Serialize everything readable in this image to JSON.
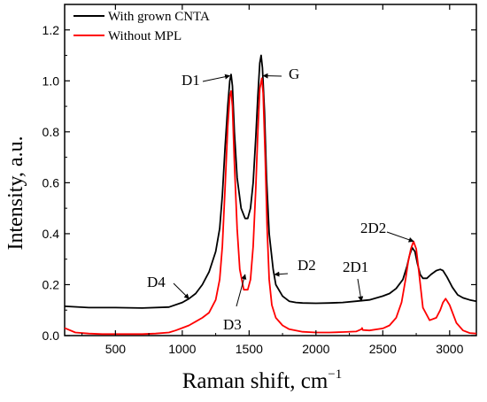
{
  "chart_data": {
    "type": "line",
    "xlabel": "Raman shift, cm",
    "xlabel_sup": "−1",
    "ylabel": "Intensity, a.u.",
    "xlim": [
      120,
      3200
    ],
    "ylim": [
      0.0,
      1.3
    ],
    "x_ticks": [
      500,
      1000,
      1500,
      2000,
      2500,
      3000
    ],
    "y_ticks": [
      0.0,
      0.2,
      0.4,
      0.6,
      0.8,
      1.0,
      1.2
    ],
    "y_tick_labels": [
      "0.0",
      "0.2",
      "0.4",
      "0.6",
      "0.8",
      "1.0",
      "1.2"
    ],
    "grid": false,
    "legend_position": "top-left",
    "series": [
      {
        "name": "With grown CNTA",
        "color": "#000000",
        "x": [
          120,
          300,
          500,
          700,
          900,
          1000,
          1050,
          1100,
          1150,
          1200,
          1250,
          1280,
          1300,
          1320,
          1340,
          1355,
          1365,
          1375,
          1390,
          1410,
          1440,
          1470,
          1490,
          1510,
          1530,
          1550,
          1565,
          1580,
          1590,
          1600,
          1615,
          1630,
          1650,
          1680,
          1700,
          1750,
          1800,
          1850,
          1900,
          2000,
          2100,
          2200,
          2300,
          2400,
          2500,
          2550,
          2600,
          2650,
          2680,
          2700,
          2720,
          2740,
          2760,
          2780,
          2800,
          2830,
          2860,
          2900,
          2930,
          2950,
          2980,
          3020,
          3060,
          3100,
          3150,
          3200
        ],
        "values": [
          0.115,
          0.11,
          0.11,
          0.108,
          0.112,
          0.13,
          0.145,
          0.165,
          0.2,
          0.25,
          0.33,
          0.42,
          0.55,
          0.74,
          0.9,
          1.0,
          1.025,
          0.98,
          0.8,
          0.62,
          0.5,
          0.46,
          0.46,
          0.5,
          0.6,
          0.78,
          0.94,
          1.07,
          1.1,
          1.05,
          0.88,
          0.62,
          0.4,
          0.26,
          0.2,
          0.155,
          0.135,
          0.13,
          0.128,
          0.127,
          0.128,
          0.13,
          0.135,
          0.14,
          0.155,
          0.165,
          0.185,
          0.22,
          0.27,
          0.315,
          0.345,
          0.33,
          0.28,
          0.24,
          0.225,
          0.225,
          0.24,
          0.255,
          0.26,
          0.255,
          0.23,
          0.19,
          0.16,
          0.148,
          0.14,
          0.135
        ]
      },
      {
        "name": "Without MPL",
        "color": "#ff0000",
        "x": [
          120,
          200,
          300,
          400,
          500,
          600,
          700,
          800,
          900,
          950,
          1000,
          1050,
          1100,
          1150,
          1200,
          1250,
          1280,
          1300,
          1320,
          1340,
          1355,
          1365,
          1375,
          1390,
          1410,
          1430,
          1460,
          1490,
          1510,
          1530,
          1550,
          1565,
          1580,
          1595,
          1605,
          1620,
          1635,
          1650,
          1670,
          1700,
          1750,
          1800,
          1900,
          2000,
          2100,
          2200,
          2300,
          2340,
          2345,
          2350,
          2400,
          2500,
          2550,
          2600,
          2640,
          2670,
          2690,
          2710,
          2730,
          2750,
          2770,
          2800,
          2850,
          2900,
          2930,
          2950,
          2970,
          3000,
          3050,
          3100,
          3150,
          3200
        ],
        "values": [
          0.03,
          0.012,
          0.008,
          0.006,
          0.006,
          0.006,
          0.006,
          0.008,
          0.012,
          0.02,
          0.03,
          0.04,
          0.055,
          0.07,
          0.09,
          0.14,
          0.22,
          0.35,
          0.58,
          0.82,
          0.94,
          0.96,
          0.9,
          0.68,
          0.42,
          0.26,
          0.18,
          0.18,
          0.22,
          0.35,
          0.58,
          0.8,
          0.97,
          1.01,
          0.95,
          0.7,
          0.42,
          0.22,
          0.12,
          0.07,
          0.04,
          0.025,
          0.015,
          0.012,
          0.012,
          0.014,
          0.016,
          0.025,
          0.03,
          0.022,
          0.02,
          0.028,
          0.04,
          0.07,
          0.13,
          0.22,
          0.29,
          0.34,
          0.37,
          0.34,
          0.25,
          0.11,
          0.06,
          0.07,
          0.1,
          0.13,
          0.145,
          0.12,
          0.05,
          0.02,
          0.01,
          0.008
        ]
      }
    ],
    "annotations": [
      {
        "text": "D1",
        "x": 1355,
        "y": 1.02
      },
      {
        "text": "G",
        "x": 1605,
        "y": 1.02
      },
      {
        "text": "D4",
        "x": 1050,
        "y": 0.145
      },
      {
        "text": "D2",
        "x": 1690,
        "y": 0.24
      },
      {
        "text": "D3",
        "x": 1470,
        "y": 0.24
      },
      {
        "text": "2D1",
        "x": 2340,
        "y": 0.135
      },
      {
        "text": "2D2",
        "x": 2730,
        "y": 0.37
      }
    ]
  }
}
